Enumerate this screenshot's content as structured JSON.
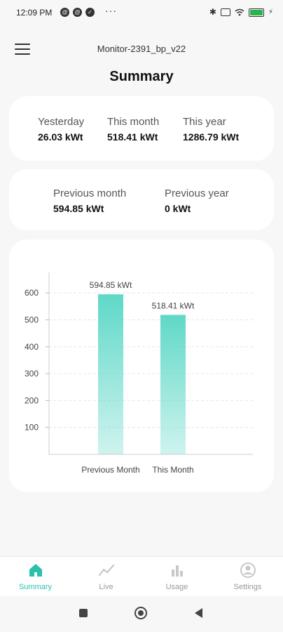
{
  "status_bar": {
    "time": "12:09 PM",
    "dots": "···"
  },
  "header": {
    "device_name": "Monitor-2391_bp_v22",
    "title": "Summary"
  },
  "stats_top": [
    {
      "label": "Yesterday",
      "value": "26.03 kWt"
    },
    {
      "label": "This month",
      "value": "518.41 kWt"
    },
    {
      "label": "This year",
      "value": "1286.79 kWt"
    }
  ],
  "stats_prev": [
    {
      "label": "Previous month",
      "value": "594.85 kWt"
    },
    {
      "label": "Previous year",
      "value": "0 kWt"
    }
  ],
  "chart_data": {
    "type": "bar",
    "categories": [
      "Previous Month",
      "This Month"
    ],
    "values": [
      594.85,
      518.41
    ],
    "data_labels": [
      "594.85 kWt",
      "518.41 kWt"
    ],
    "y_ticks": [
      100,
      200,
      300,
      400,
      500,
      600
    ],
    "ylim": [
      0,
      650
    ],
    "grid": true,
    "bar_color": "#5fd8c8"
  },
  "bottom_nav": [
    {
      "label": "Summary",
      "icon": "home-icon",
      "active": true
    },
    {
      "label": "Live",
      "icon": "line-chart-icon",
      "active": false
    },
    {
      "label": "Usage",
      "icon": "bar-chart-icon",
      "active": false
    },
    {
      "label": "Settings",
      "icon": "user-icon",
      "active": false
    }
  ],
  "colors": {
    "accent": "#2bbfae",
    "inactive": "#c8c8c8"
  }
}
